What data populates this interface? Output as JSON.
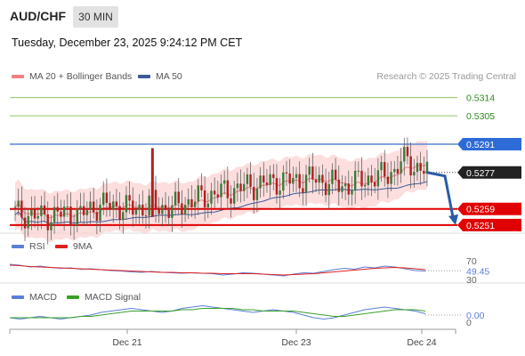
{
  "header": {
    "pair": "AUD/CHF",
    "timeframe": "30 MIN",
    "datetime": "Tuesday, December 23, 2025 9:24:12 PM CET"
  },
  "legend_main": [
    {
      "label": "MA 20 + Bollinger Bands",
      "color": "#f08080"
    },
    {
      "label": "MA 50",
      "color": "#3b5a9a"
    }
  ],
  "credit": "Research © 2025 Trading Central",
  "legend_rsi": [
    {
      "label": "RSI",
      "color": "#5a7fd6"
    },
    {
      "label": "9MA",
      "color": "#e02020"
    }
  ],
  "legend_macd": [
    {
      "label": "MACD",
      "color": "#5a7fd6"
    },
    {
      "label": "MACD Signal",
      "color": "#3aa02a"
    }
  ],
  "chart_data": [
    {
      "type": "candlestick",
      "title": "",
      "ylim": [
        0.5247,
        0.532
      ],
      "levels": [
        {
          "value": 0.5314,
          "label": "0.5314",
          "style": "resistance-green"
        },
        {
          "value": 0.5305,
          "label": "0.5305",
          "style": "resistance-green"
        },
        {
          "value": 0.5291,
          "label": "0.5291",
          "style": "pivot-blue"
        },
        {
          "value": 0.5277,
          "label": "0.5277",
          "style": "last-price"
        },
        {
          "value": 0.5259,
          "label": "0.5259",
          "style": "support-red"
        },
        {
          "value": 0.5251,
          "label": "0.5251",
          "style": "support-red"
        }
      ],
      "arrow": {
        "from": 0.5277,
        "to": 0.5251,
        "direction": "down"
      },
      "price_path": [
        [
          0,
          0.5257
        ],
        [
          4,
          0.5256
        ],
        [
          8,
          0.5255
        ],
        [
          12,
          0.5256
        ],
        [
          16,
          0.5257
        ],
        [
          20,
          0.5256
        ],
        [
          24,
          0.526
        ],
        [
          28,
          0.5261
        ],
        [
          32,
          0.526
        ],
        [
          36,
          0.5259
        ],
        [
          40,
          0.526
        ],
        [
          42,
          0.5262
        ],
        [
          44,
          0.526
        ],
        [
          48,
          0.5259
        ],
        [
          50,
          0.5261
        ],
        [
          54,
          0.5263
        ],
        [
          58,
          0.5265
        ],
        [
          62,
          0.5267
        ],
        [
          66,
          0.5268
        ],
        [
          70,
          0.527
        ],
        [
          74,
          0.5271
        ],
        [
          78,
          0.5272
        ],
        [
          82,
          0.5273
        ],
        [
          86,
          0.5273
        ],
        [
          90,
          0.5274
        ],
        [
          94,
          0.5273
        ],
        [
          98,
          0.5271
        ],
        [
          100,
          0.527
        ],
        [
          104,
          0.5272
        ],
        [
          108,
          0.5274
        ],
        [
          112,
          0.5275
        ],
        [
          116,
          0.5278
        ],
        [
          118,
          0.5282
        ],
        [
          120,
          0.5283
        ],
        [
          122,
          0.528
        ],
        [
          124,
          0.5279
        ],
        [
          126,
          0.5277
        ]
      ],
      "spike": {
        "index": 42,
        "high": 0.5289,
        "low": 0.5255
      }
    },
    {
      "type": "line",
      "name": "RSI",
      "ylim": [
        30,
        70
      ],
      "ticks": [
        "70",
        "30"
      ],
      "current": "49.45",
      "series": [
        {
          "name": "RSI",
          "values": [
            64,
            62,
            58,
            60,
            57,
            55,
            56,
            53,
            54,
            52,
            50,
            49,
            47,
            46,
            48,
            46,
            45,
            44,
            45,
            44,
            43,
            40,
            42,
            45,
            44,
            42,
            40,
            38,
            42,
            45,
            44,
            48,
            52,
            55,
            53,
            58,
            56,
            60,
            58,
            54,
            50,
            49
          ]
        },
        {
          "name": "9MA",
          "values": [
            62,
            61,
            59,
            58,
            57,
            56,
            55,
            54,
            53,
            52,
            51,
            50,
            49,
            48,
            47,
            46,
            46,
            45,
            45,
            44,
            44,
            43,
            43,
            43,
            43,
            42,
            41,
            40,
            41,
            42,
            43,
            45,
            47,
            49,
            51,
            53,
            55,
            56,
            57,
            56,
            54,
            52
          ]
        }
      ]
    },
    {
      "type": "line",
      "name": "MACD",
      "ticks": [
        "0"
      ],
      "current": "0.00",
      "series": [
        {
          "name": "MACD",
          "values": [
            -2,
            -3,
            -2,
            -1,
            -2,
            -3,
            -2,
            -1,
            0,
            2,
            3,
            4,
            5,
            4,
            3,
            2,
            3,
            5,
            6,
            7,
            6,
            5,
            4,
            3,
            2,
            3,
            4,
            3,
            2,
            0,
            -2,
            -3,
            -2,
            0,
            2,
            4,
            5,
            6,
            5,
            4,
            3,
            1
          ]
        },
        {
          "name": "MACD Signal",
          "values": [
            -2,
            -2,
            -2,
            -2,
            -2,
            -2,
            -2,
            -1,
            -1,
            0,
            1,
            2,
            3,
            3,
            3,
            3,
            3,
            4,
            4,
            5,
            5,
            5,
            5,
            4,
            4,
            3,
            3,
            3,
            3,
            2,
            1,
            0,
            -1,
            -1,
            0,
            1,
            2,
            3,
            4,
            4,
            4,
            3
          ]
        }
      ]
    }
  ],
  "x_axis": {
    "ticks": [
      "Dec 21",
      "Dec 23",
      "Dec 24"
    ]
  }
}
